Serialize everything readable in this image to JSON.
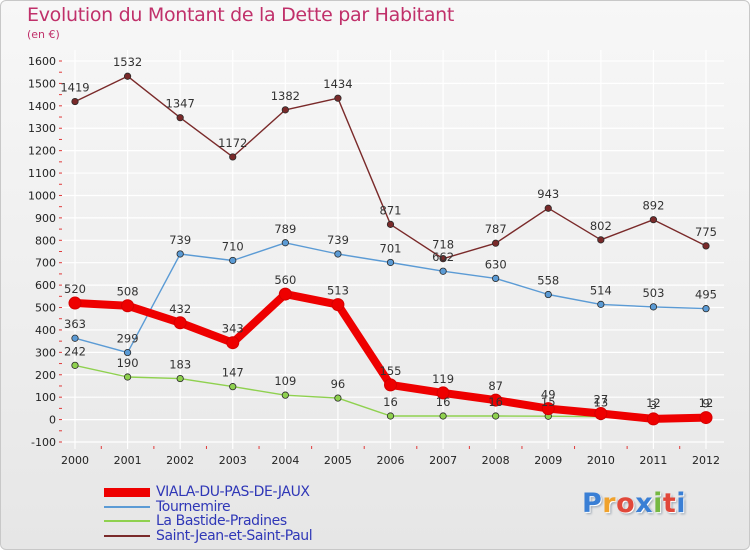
{
  "title": "Evolution du Montant de la Dette par Habitant",
  "unit": "(en €)",
  "brand": {
    "text": "Proxiti",
    "colors": [
      "#3a7fd5",
      "#f0a22c",
      "#e1483a",
      "#3a7fd5",
      "#76b843",
      "#e1483a",
      "#3a7fd5"
    ]
  },
  "chart_data": {
    "type": "line",
    "x": [
      "2000",
      "2001",
      "2002",
      "2003",
      "2004",
      "2005",
      "2006",
      "2007",
      "2008",
      "2009",
      "2010",
      "2011",
      "2012"
    ],
    "ylim": [
      -100,
      1600
    ],
    "yticks": [
      -100,
      0,
      100,
      200,
      300,
      400,
      500,
      600,
      700,
      800,
      900,
      1000,
      1100,
      1200,
      1300,
      1400,
      1500,
      1600
    ],
    "grid": true,
    "legend_position": "bottom-left",
    "series": [
      {
        "name": "Saint-Jean-et-Saint-Paul",
        "color": "#7a2a2a",
        "values": [
          1419,
          1532,
          1347,
          1172,
          1382,
          1434,
          871,
          718,
          787,
          943,
          802,
          892,
          775
        ]
      },
      {
        "name": "Tournemire",
        "color": "#5b9bd5",
        "values": [
          363,
          299,
          739,
          710,
          789,
          739,
          701,
          662,
          630,
          558,
          514,
          503,
          495
        ]
      },
      {
        "name": "La Bastide-Pradines",
        "color": "#8fd14f",
        "values": [
          242,
          190,
          183,
          147,
          109,
          96,
          16,
          16,
          16,
          15,
          13,
          12,
          12
        ]
      },
      {
        "name": "VIALA-DU-PAS-DE-JAUX",
        "color": "#ee0000",
        "values": [
          520,
          508,
          432,
          343,
          560,
          513,
          155,
          119,
          87,
          49,
          27,
          3,
          9
        ]
      }
    ]
  },
  "legend": [
    {
      "label": "VIALA-DU-PAS-DE-JAUX",
      "color": "#ee0000"
    },
    {
      "label": "Tournemire",
      "color": "#5b9bd5"
    },
    {
      "label": "La Bastide-Pradines",
      "color": "#8fd14f"
    },
    {
      "label": "Saint-Jean-et-Saint-Paul",
      "color": "#7a2a2a"
    }
  ]
}
